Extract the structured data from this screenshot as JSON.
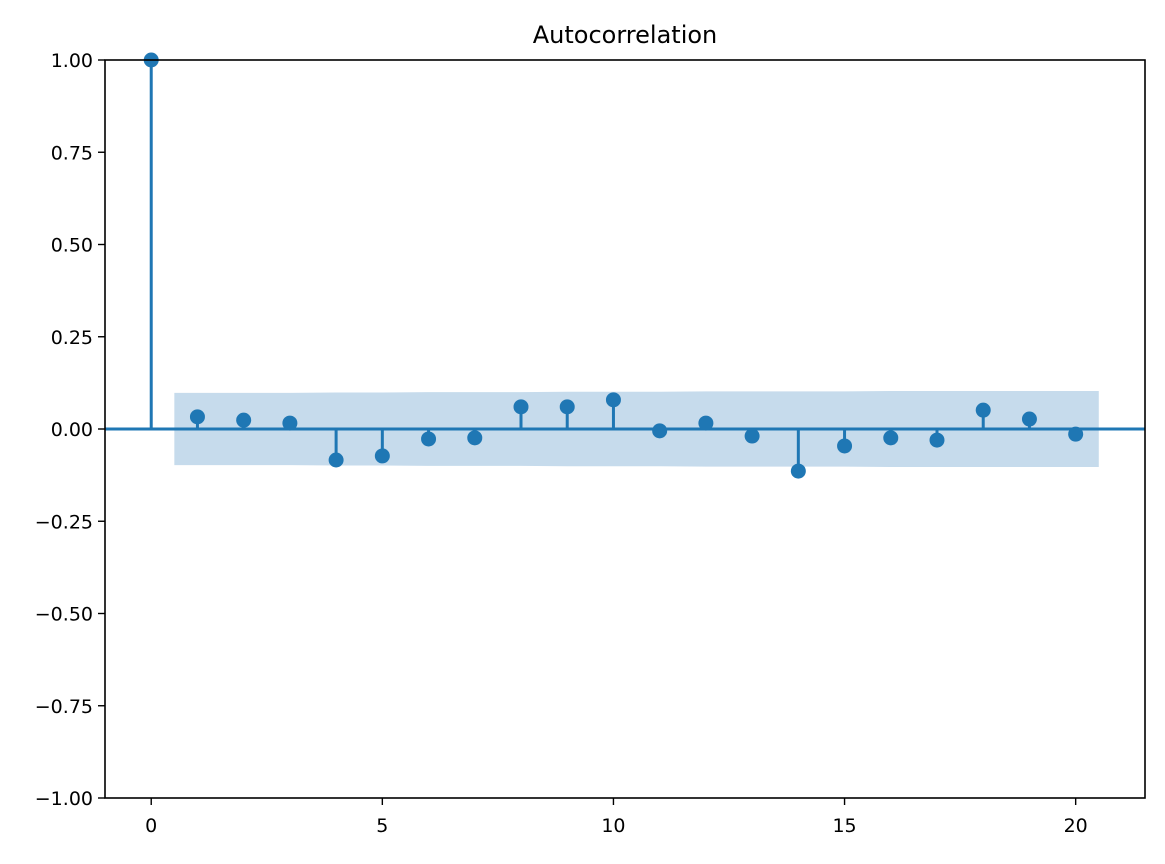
{
  "chart_data": {
    "type": "stem",
    "title": "Autocorrelation",
    "xlabel": "",
    "ylabel": "",
    "xlim": [
      -1,
      21.5
    ],
    "ylim": [
      -1.0,
      1.0
    ],
    "grid": false,
    "x_ticks": [
      "0",
      "5",
      "10",
      "15",
      "20"
    ],
    "x_tick_values": [
      0,
      5,
      10,
      15,
      20
    ],
    "y_ticks": [
      "−1.00",
      "−0.75",
      "−0.50",
      "−0.25",
      "0.00",
      "0.25",
      "0.50",
      "0.75",
      "1.00"
    ],
    "y_tick_values": [
      -1.0,
      -0.75,
      -0.5,
      -0.25,
      0.0,
      0.25,
      0.5,
      0.75,
      1.0
    ],
    "lags": [
      0,
      1,
      2,
      3,
      4,
      5,
      6,
      7,
      8,
      9,
      10,
      11,
      12,
      13,
      14,
      15,
      16,
      17,
      18,
      19,
      20
    ],
    "values": [
      1.0,
      0.033,
      0.024,
      0.016,
      -0.084,
      -0.073,
      -0.027,
      -0.024,
      0.06,
      0.06,
      0.079,
      -0.005,
      0.016,
      -0.019,
      -0.114,
      -0.046,
      -0.024,
      -0.03,
      0.051,
      0.027,
      -0.014
    ],
    "confidence_band": {
      "lags": [
        1,
        2,
        3,
        4,
        5,
        6,
        7,
        8,
        9,
        10,
        11,
        12,
        13,
        14,
        15,
        16,
        17,
        18,
        19,
        20
      ],
      "half_width": [
        0.098,
        0.098,
        0.098,
        0.099,
        0.099,
        0.1,
        0.1,
        0.1,
        0.101,
        0.101,
        0.101,
        0.102,
        0.102,
        0.102,
        0.102,
        0.103,
        0.103,
        0.103,
        0.103,
        0.103
      ]
    },
    "colors": {
      "marker": "#1f77b4",
      "band": "#c6dbec"
    }
  }
}
